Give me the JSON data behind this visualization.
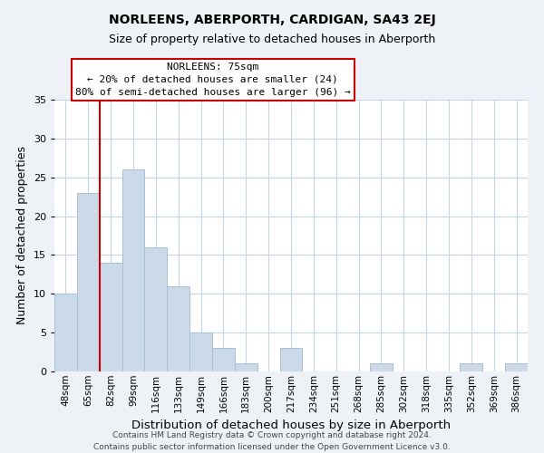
{
  "title": "NORLEENS, ABERPORTH, CARDIGAN, SA43 2EJ",
  "subtitle": "Size of property relative to detached houses in Aberporth",
  "xlabel": "Distribution of detached houses by size in Aberporth",
  "ylabel": "Number of detached properties",
  "categories": [
    "48sqm",
    "65sqm",
    "82sqm",
    "99sqm",
    "116sqm",
    "133sqm",
    "149sqm",
    "166sqm",
    "183sqm",
    "200sqm",
    "217sqm",
    "234sqm",
    "251sqm",
    "268sqm",
    "285sqm",
    "302sqm",
    "318sqm",
    "335sqm",
    "352sqm",
    "369sqm",
    "386sqm"
  ],
  "values": [
    10,
    23,
    14,
    26,
    16,
    11,
    5,
    3,
    1,
    0,
    3,
    0,
    0,
    0,
    1,
    0,
    0,
    0,
    1,
    0,
    1
  ],
  "bar_color": "#ccd9e8",
  "bar_edge_color": "#a8c0d8",
  "ylim": [
    0,
    35
  ],
  "yticks": [
    0,
    5,
    10,
    15,
    20,
    25,
    30,
    35
  ],
  "vline_color": "#cc0000",
  "annotation_title": "NORLEENS: 75sqm",
  "annotation_line1": "← 20% of detached houses are smaller (24)",
  "annotation_line2": "80% of semi-detached houses are larger (96) →",
  "footer_line1": "Contains HM Land Registry data © Crown copyright and database right 2024.",
  "footer_line2": "Contains public sector information licensed under the Open Government Licence v3.0.",
  "background_color": "#eef2f7",
  "plot_background_color": "#ffffff",
  "grid_color": "#c5d5e5",
  "title_fontsize": 10,
  "subtitle_fontsize": 9,
  "axis_label_fontsize": 9,
  "tick_fontsize": 7.5,
  "annotation_fontsize": 8,
  "footer_fontsize": 6.5
}
